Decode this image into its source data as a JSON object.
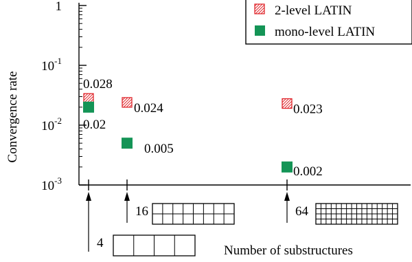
{
  "chart_data": {
    "type": "scatter",
    "yscale": "log",
    "ylabel": "Convergence rate",
    "xlabel": "Number of substructures",
    "y_ticks": [
      {
        "value": 1,
        "label_base": "1",
        "label_exp": ""
      },
      {
        "value": 0.1,
        "label_base": "10",
        "label_exp": "-1"
      },
      {
        "value": 0.01,
        "label_base": "10",
        "label_exp": "-2"
      },
      {
        "value": 0.001,
        "label_base": "10",
        "label_exp": "-3"
      }
    ],
    "ylim": [
      0.001,
      1
    ],
    "x_categories": [
      "4",
      "16",
      "64"
    ],
    "x_values": [
      4,
      16,
      64
    ],
    "grid_layouts": [
      {
        "n": 4,
        "rows": 1,
        "cols": 4
      },
      {
        "n": 16,
        "rows": 2,
        "cols": 8
      },
      {
        "n": 64,
        "rows": 4,
        "cols": 16
      }
    ],
    "legend_position": "top-right",
    "series": [
      {
        "name": "2-level LATIN",
        "marker": "hatched-square",
        "color": "#e0282e",
        "values": [
          0.028,
          0.024,
          0.023
        ],
        "labels": [
          "0.028",
          "0.024",
          "0.023"
        ]
      },
      {
        "name": "mono-level LATIN",
        "marker": "filled-square",
        "color": "#149456",
        "values": [
          0.02,
          0.005,
          0.002
        ],
        "labels": [
          "0.02",
          "0.005",
          "0.002"
        ]
      }
    ]
  }
}
